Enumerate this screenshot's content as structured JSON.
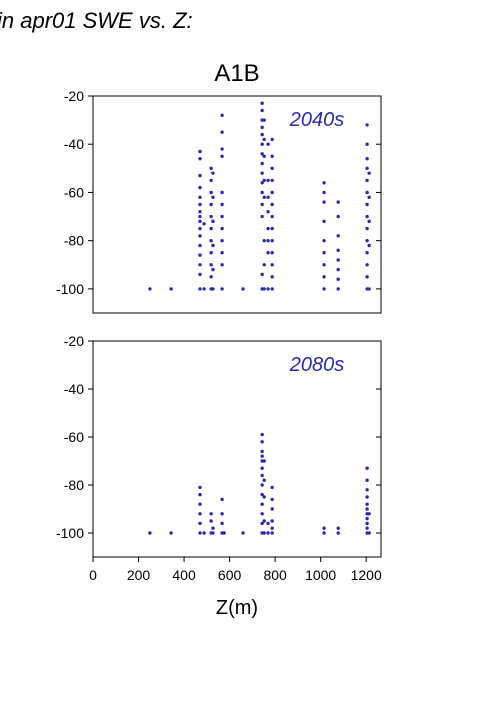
{
  "title": "in apr01 SWE vs. Z:",
  "chart_data": [
    {
      "type": "scatter",
      "subtitle": "A1B",
      "label": "2040s",
      "xlim": [
        0,
        1265
      ],
      "ylim": [
        -110,
        -20
      ],
      "yticks": [
        -20,
        -40,
        -60,
        -80,
        -100
      ],
      "series": [
        {
          "color": "#2a2ab0",
          "x": [
            250,
            343,
            470,
            470,
            470,
            470,
            470,
            470,
            470,
            470,
            470,
            470,
            470,
            470,
            470,
            470,
            470,
            470,
            488,
            488,
            519,
            519,
            519,
            519,
            519,
            519,
            519,
            519,
            519,
            519,
            519,
            527,
            527,
            527,
            527,
            527,
            527,
            567,
            567,
            567,
            567,
            567,
            567,
            567,
            567,
            567,
            567,
            567,
            567,
            659,
            743,
            743,
            743,
            743,
            743,
            743,
            743,
            743,
            743,
            743,
            743,
            743,
            743,
            743,
            743,
            752,
            752,
            752,
            752,
            752,
            752,
            752,
            752,
            769,
            769,
            769,
            769,
            769,
            769,
            769,
            769,
            787,
            787,
            787,
            787,
            787,
            787,
            787,
            787,
            787,
            787,
            787,
            787,
            787,
            1015,
            1015,
            1015,
            1015,
            1015,
            1015,
            1015,
            1015,
            1015,
            1077,
            1077,
            1077,
            1077,
            1077,
            1077,
            1077,
            1077,
            1204,
            1204,
            1204,
            1204,
            1204,
            1204,
            1204,
            1204,
            1204,
            1204,
            1204,
            1204,
            1204,
            1204,
            1213,
            1213,
            1213,
            1213,
            1213
          ],
          "values": [
            -100,
            -100,
            -43,
            -46,
            -53,
            -58,
            -62,
            -65,
            -68,
            -70,
            -72,
            -75,
            -78,
            -82,
            -86,
            -90,
            -94,
            -100,
            -73,
            -100,
            -50,
            -55,
            -60,
            -65,
            -70,
            -75,
            -80,
            -85,
            -90,
            -95,
            -100,
            -52,
            -62,
            -72,
            -82,
            -92,
            -100,
            -28,
            -35,
            -42,
            -45,
            -60,
            -65,
            -70,
            -75,
            -80,
            -85,
            -90,
            -100,
            -100,
            -23,
            -26,
            -30,
            -33,
            -36,
            -40,
            -44,
            -48,
            -52,
            -56,
            -60,
            -65,
            -70,
            -94,
            -100,
            -30,
            -38,
            -45,
            -55,
            -62,
            -80,
            -90,
            -100,
            -40,
            -55,
            -62,
            -68,
            -75,
            -80,
            -85,
            -100,
            -38,
            -45,
            -50,
            -55,
            -60,
            -65,
            -70,
            -75,
            -80,
            -85,
            -90,
            -95,
            -100,
            -56,
            -60,
            -64,
            -72,
            -80,
            -85,
            -90,
            -95,
            -100,
            -64,
            -70,
            -78,
            -84,
            -88,
            -92,
            -96,
            -100,
            -32,
            -40,
            -46,
            -50,
            -55,
            -60,
            -65,
            -70,
            -75,
            -80,
            -85,
            -90,
            -95,
            -100,
            -52,
            -62,
            -72,
            -82,
            -100
          ]
        }
      ]
    },
    {
      "type": "scatter",
      "label": "2080s",
      "xlabel": "Z(m)",
      "xlim": [
        0,
        1265
      ],
      "ylim": [
        -110,
        -20
      ],
      "xticks": [
        0,
        200,
        400,
        600,
        800,
        1000,
        1200
      ],
      "yticks": [
        -20,
        -40,
        -60,
        -80,
        -100
      ],
      "series": [
        {
          "color": "#2a2ab0",
          "x": [
            250,
            343,
            470,
            470,
            470,
            470,
            470,
            470,
            488,
            519,
            519,
            519,
            527,
            527,
            567,
            567,
            567,
            567,
            576,
            659,
            743,
            743,
            743,
            743,
            743,
            743,
            743,
            743,
            743,
            743,
            743,
            743,
            743,
            752,
            752,
            752,
            752,
            752,
            769,
            769,
            787,
            787,
            787,
            787,
            787,
            787,
            1015,
            1015,
            1077,
            1077,
            1204,
            1204,
            1204,
            1204,
            1204,
            1204,
            1204,
            1204,
            1204,
            1204,
            1204,
            1213,
            1213
          ],
          "values": [
            -100,
            -100,
            -81,
            -84,
            -88,
            -92,
            -96,
            -100,
            -100,
            -92,
            -95,
            -100,
            -98,
            -100,
            -86,
            -92,
            -96,
            -100,
            -100,
            -100,
            -59,
            -62,
            -66,
            -68,
            -70,
            -73,
            -76,
            -80,
            -84,
            -88,
            -92,
            -96,
            -100,
            -70,
            -78,
            -85,
            -95,
            -100,
            -96,
            -100,
            -81,
            -86,
            -90,
            -95,
            -98,
            -100,
            -98,
            -100,
            -98,
            -100,
            -73,
            -78,
            -82,
            -85,
            -88,
            -90,
            -92,
            -94,
            -96,
            -98,
            -100,
            -92,
            -100
          ]
        }
      ]
    }
  ]
}
